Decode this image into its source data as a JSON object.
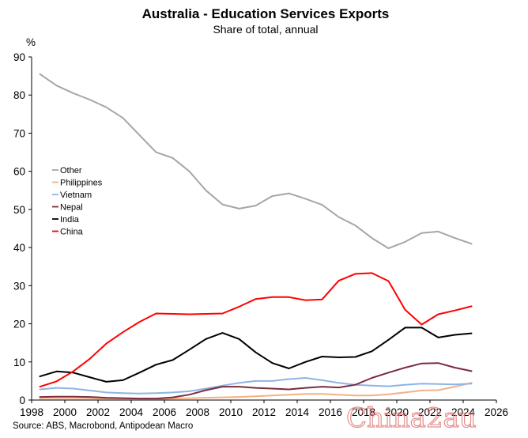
{
  "chart_data": {
    "type": "line",
    "title": "Australia - Education Services Exports",
    "subtitle": "Share of total, annual",
    "ylabel": "%",
    "xlabel": "",
    "xlim": [
      1998,
      2026
    ],
    "ylim": [
      0,
      90
    ],
    "xticks": [
      1998,
      2000,
      2002,
      2004,
      2006,
      2008,
      2010,
      2012,
      2014,
      2016,
      2018,
      2020,
      2022,
      2024,
      2026
    ],
    "yticks": [
      0,
      10,
      20,
      30,
      40,
      50,
      60,
      70,
      80,
      90
    ],
    "grid": false,
    "legend_position": "left",
    "x": [
      1998.5,
      1999.5,
      2000.5,
      2001.5,
      2002.5,
      2003.5,
      2004.5,
      2005.5,
      2006.5,
      2007.5,
      2008.5,
      2009.5,
      2010.5,
      2011.5,
      2012.5,
      2013.5,
      2014.5,
      2015.5,
      2016.5,
      2017.5,
      2018.5,
      2019.5,
      2020.5,
      2021.5,
      2022.5,
      2023.5,
      2024.5
    ],
    "series": [
      {
        "name": "Other",
        "color": "#a6a6a6",
        "values": [
          85.5,
          82.5,
          80.5,
          78.8,
          76.8,
          74.0,
          69.5,
          65.0,
          63.5,
          60.0,
          55.0,
          51.3,
          50.2,
          51.0,
          53.5,
          54.2,
          52.8,
          51.2,
          48.0,
          45.8,
          42.5,
          39.8,
          41.5,
          43.8,
          44.2,
          42.5,
          41.0
        ]
      },
      {
        "name": "Philippines",
        "color": "#f4b183",
        "values": [
          0.3,
          0.3,
          0.3,
          0.3,
          0.3,
          0.3,
          0.3,
          0.3,
          0.4,
          0.5,
          0.6,
          0.7,
          0.8,
          1.0,
          1.2,
          1.4,
          1.6,
          1.6,
          1.4,
          1.2,
          1.2,
          1.5,
          2.0,
          2.5,
          2.6,
          3.5,
          4.5
        ]
      },
      {
        "name": "Vietnam",
        "color": "#8eb4e3",
        "values": [
          2.8,
          3.2,
          3.0,
          2.5,
          2.0,
          1.8,
          1.7,
          1.8,
          2.0,
          2.3,
          3.0,
          3.8,
          4.5,
          5.0,
          5.0,
          5.5,
          5.8,
          5.2,
          4.5,
          4.0,
          3.8,
          3.6,
          4.0,
          4.3,
          4.2,
          4.1,
          4.3
        ]
      },
      {
        "name": "Nepal",
        "color": "#7b2c41",
        "values": [
          0.8,
          0.9,
          0.9,
          0.8,
          0.6,
          0.5,
          0.4,
          0.4,
          0.7,
          1.4,
          2.6,
          3.5,
          3.5,
          3.2,
          3.0,
          2.8,
          3.2,
          3.5,
          3.3,
          4.0,
          5.8,
          7.2,
          8.5,
          9.6,
          9.7,
          8.5,
          7.6
        ]
      },
      {
        "name": "India",
        "color": "#000000",
        "values": [
          6.2,
          7.5,
          7.2,
          6.0,
          4.8,
          5.2,
          7.2,
          9.3,
          10.5,
          13.2,
          16.0,
          17.6,
          16.0,
          12.5,
          9.7,
          8.3,
          10.0,
          11.4,
          11.2,
          11.3,
          12.8,
          15.8,
          19.0,
          19.0,
          16.4,
          17.1,
          17.5
        ]
      },
      {
        "name": "China",
        "color": "#ff0000",
        "values": [
          3.5,
          4.9,
          7.5,
          10.8,
          14.8,
          17.8,
          20.5,
          22.7,
          22.6,
          22.5,
          22.6,
          22.7,
          24.5,
          26.5,
          27.0,
          27.0,
          26.2,
          26.4,
          31.3,
          33.1,
          33.3,
          31.2,
          23.7,
          19.8,
          22.5,
          23.5,
          24.6
        ]
      }
    ],
    "source": "Source: ABS, Macrobond, Antipodean Macro",
    "watermark": "China2au"
  }
}
